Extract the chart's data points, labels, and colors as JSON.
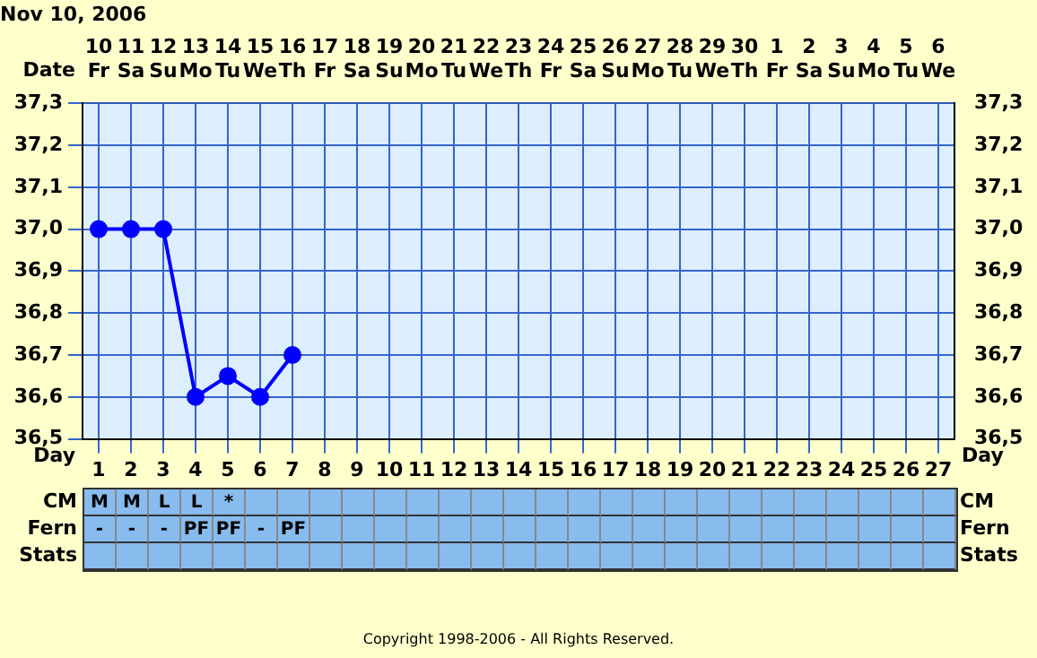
{
  "chart_data": [
    {
      "type": "line",
      "title": "Nov 10, 2006",
      "xlabel": "Day",
      "x2label": "Date",
      "x": [
        1,
        2,
        3,
        4,
        5,
        6,
        7
      ],
      "series": [
        {
          "color": "#0000ff",
          "values": [
            37.0,
            37.0,
            37.0,
            36.6,
            36.65,
            36.6,
            36.7
          ]
        }
      ],
      "xlim": [
        0.5,
        27.5
      ],
      "xticks": [
        1,
        2,
        3,
        4,
        5,
        6,
        7,
        8,
        9,
        10,
        11,
        12,
        13,
        14,
        15,
        16,
        17,
        18,
        19,
        20,
        21,
        22,
        23,
        24,
        25,
        26,
        27
      ],
      "x2lim": [
        "--11-09T12:00",
        "--12-06T12:00"
      ],
      "x2ticks": [
        {
          "value": "--11-10",
          "label": "10 Fr"
        },
        {
          "value": "--11-11",
          "label": "11 Sa"
        },
        {
          "value": "--11-12",
          "label": "12 Su"
        },
        {
          "value": "--11-13",
          "label": "13 Mo"
        },
        {
          "value": "--11-14",
          "label": "14 Tu"
        },
        {
          "value": "--11-15",
          "label": "15 We"
        },
        {
          "value": "--11-16",
          "label": "16 Th"
        },
        {
          "value": "--11-17",
          "label": "17 Fr"
        },
        {
          "value": "--11-18",
          "label": "18 Sa"
        },
        {
          "value": "--11-19",
          "label": "19 Su"
        },
        {
          "value": "--11-20",
          "label": "20 Mo"
        },
        {
          "value": "--11-21",
          "label": "21 Tu"
        },
        {
          "value": "--11-22",
          "label": "22 We"
        },
        {
          "value": "--11-23",
          "label": "23 Th"
        },
        {
          "value": "--11-24",
          "label": "24 Fr"
        },
        {
          "value": "--11-25",
          "label": "25 Sa"
        },
        {
          "value": "--11-26",
          "label": "26 Su"
        },
        {
          "value": "--11-27",
          "label": "27 Mo"
        },
        {
          "value": "--11-28",
          "label": "28 Tu"
        },
        {
          "value": "--11-29",
          "label": "29 We"
        },
        {
          "value": "--11-30",
          "label": "30 Th"
        },
        {
          "value": "--12-01",
          "label": "1 Fr"
        },
        {
          "value": "--12-02",
          "label": "2 Sa"
        },
        {
          "value": "--12-03",
          "label": "3 Su"
        },
        {
          "value": "--12-04",
          "label": "4 Mo"
        },
        {
          "value": "--12-05",
          "label": "5 Tu"
        },
        {
          "value": "--12-06",
          "label": "6 We"
        }
      ],
      "ylim": [
        36.5,
        37.3
      ],
      "yticks": [
        {
          "value": 36.5,
          "label": "36,5"
        },
        {
          "value": 36.6,
          "label": "36,6"
        },
        {
          "value": 36.7,
          "label": "36,7"
        },
        {
          "value": 36.8,
          "label": "36,8"
        },
        {
          "value": 36.9,
          "label": "36,9"
        },
        {
          "value": 37.0,
          "label": "37,0"
        },
        {
          "value": 37.1,
          "label": "37,1"
        },
        {
          "value": 37.2,
          "label": "37,2"
        },
        {
          "value": 37.3,
          "label": "37,3"
        }
      ],
      "y2lim": [
        36.5,
        37.3
      ],
      "y2ticks": [
        {
          "value": 36.5,
          "label": "36,5"
        },
        {
          "value": 36.6,
          "label": "36,6"
        },
        {
          "value": 36.7,
          "label": "36,7"
        },
        {
          "value": 36.8,
          "label": "36,8"
        },
        {
          "value": 36.9,
          "label": "36,9"
        },
        {
          "value": 37.0,
          "label": "37,0"
        },
        {
          "value": 37.1,
          "label": "37,1"
        },
        {
          "value": 37.2,
          "label": "37,2"
        },
        {
          "value": 37.3,
          "label": "37,3"
        }
      ],
      "grid": true,
      "marker": "circle",
      "line_style": "solid",
      "legend": false
    },
    {
      "type": "other",
      "y_categories": [
        "CM",
        "Fern",
        "Stats"
      ],
      "y2_categories": [
        "CM",
        "Fern",
        "Stats"
      ],
      "cell_labels": [
        [
          "M",
          "M",
          "L",
          "L",
          "*",
          null,
          null,
          null,
          null,
          null,
          null,
          null,
          null,
          null,
          null,
          null,
          null,
          null,
          null,
          null,
          null,
          null,
          null,
          null,
          null,
          null,
          null
        ],
        [
          "-",
          "-",
          "-",
          "PF",
          "PF",
          "-",
          "PF",
          null,
          null,
          null,
          null,
          null,
          null,
          null,
          null,
          null,
          null,
          null,
          null,
          null,
          null,
          null,
          null,
          null,
          null,
          null,
          null
        ],
        [
          null,
          null,
          null,
          null,
          null,
          null,
          null,
          null,
          null,
          null,
          null,
          null,
          null,
          null,
          null,
          null,
          null,
          null,
          null,
          null,
          null,
          null,
          null,
          null,
          null,
          null,
          null
        ]
      ],
      "annotations": [
        "Copyright 1998-2006 - All Rights Reserved."
      ]
    }
  ]
}
